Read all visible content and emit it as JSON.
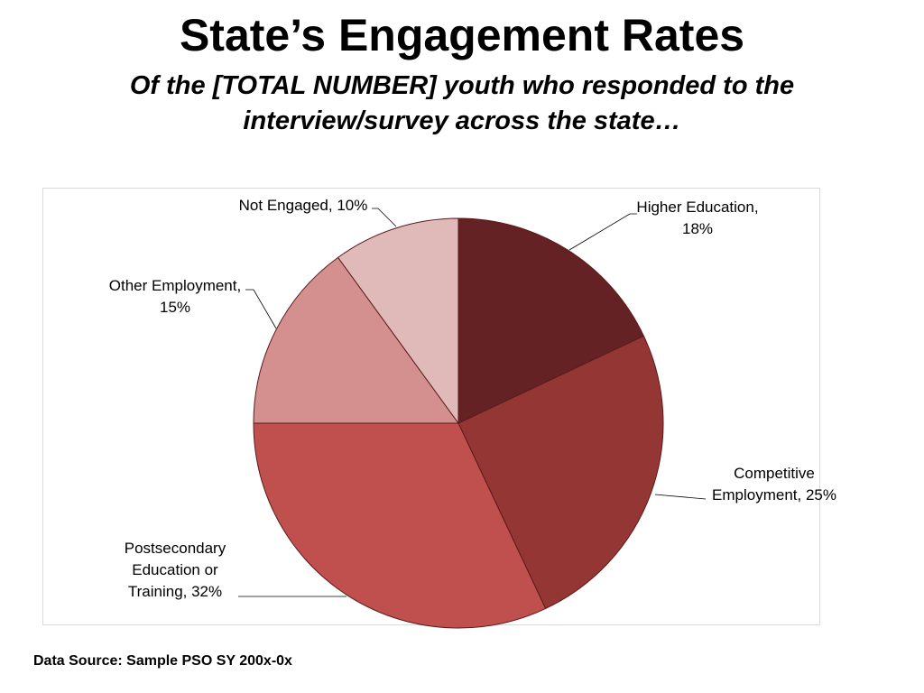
{
  "title": "State’s Engagement Rates",
  "subtitle": "Of the [TOTAL NUMBER] youth who responded to the interview/survey across the state…",
  "source": "Data Source: Sample PSO SY 200x-0x",
  "chart_data": {
    "type": "pie",
    "legend": "none",
    "slices": [
      {
        "label": "Higher Education",
        "value": 18,
        "color": "#652224",
        "label_lines": [
          "Higher Education,",
          "18%"
        ]
      },
      {
        "label": "Competitive Employment",
        "value": 25,
        "color": "#943634",
        "label_lines": [
          "Competitive",
          "Employment, 25%"
        ]
      },
      {
        "label": "Postsecondary Education or Training",
        "value": 32,
        "color": "#c0504d",
        "label_lines": [
          "Postsecondary",
          "Education or",
          "Training, 32%"
        ]
      },
      {
        "label": "Other Employment",
        "value": 15,
        "color": "#d4908f",
        "label_lines": [
          "Other Employment,",
          "15%"
        ]
      },
      {
        "label": "Not Engaged",
        "value": 10,
        "color": "#e0b9b9",
        "label_lines": [
          "Not Engaged, 10%"
        ]
      }
    ]
  }
}
